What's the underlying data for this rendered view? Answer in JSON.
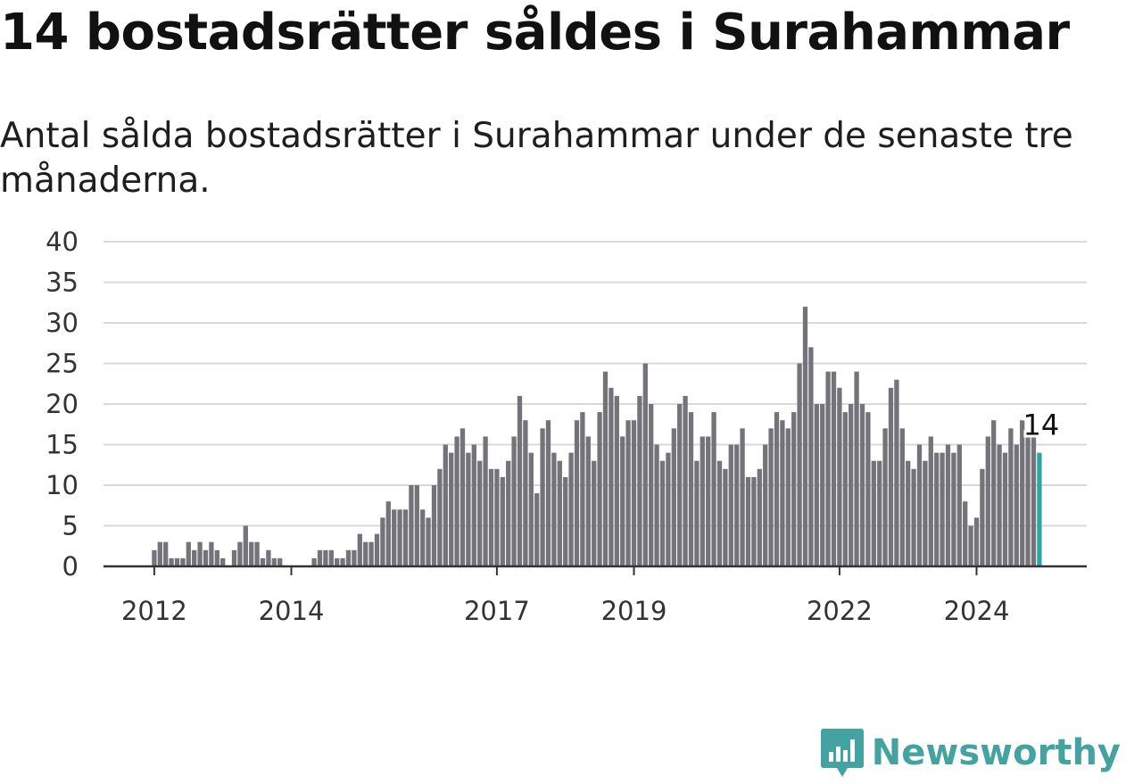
{
  "header": {
    "title": "14 bostadsrätter såldes i Surahammar",
    "subtitle": "Antal sålda bostadsrätter i Surahammar under de senaste tre månaderna."
  },
  "branding": {
    "logo_text": "Newsworthy",
    "logo_icon": "bar-chart-icon",
    "color": "#44a3a1"
  },
  "chart_data": {
    "type": "bar",
    "ylim": [
      0,
      40
    ],
    "yticks": [
      0,
      5,
      10,
      15,
      20,
      25,
      30,
      35,
      40
    ],
    "xticks": [
      {
        "label": "2012",
        "date": "2012-01"
      },
      {
        "label": "2014",
        "date": "2014-01"
      },
      {
        "label": "2017",
        "date": "2017-01"
      },
      {
        "label": "2019",
        "date": "2019-01"
      },
      {
        "label": "2022",
        "date": "2022-01"
      },
      {
        "label": "2024",
        "date": "2024-01"
      }
    ],
    "grid": true,
    "bar_color": "#74737a",
    "highlight_color": "#2aa7a3",
    "highlight_label": "14",
    "first_month": "2011-12",
    "values": [
      0,
      2,
      3,
      3,
      1,
      1,
      1,
      3,
      2,
      3,
      2,
      3,
      2,
      1,
      0,
      2,
      3,
      5,
      3,
      3,
      1,
      2,
      1,
      1,
      0,
      0,
      0,
      0,
      0,
      1,
      2,
      2,
      2,
      1,
      1,
      2,
      2,
      4,
      3,
      3,
      4,
      6,
      8,
      7,
      7,
      7,
      10,
      10,
      7,
      6,
      10,
      12,
      15,
      14,
      16,
      17,
      14,
      15,
      13,
      16,
      12,
      12,
      11,
      13,
      16,
      21,
      18,
      14,
      9,
      17,
      18,
      14,
      13,
      11,
      14,
      18,
      19,
      16,
      13,
      19,
      24,
      22,
      21,
      16,
      18,
      18,
      21,
      25,
      20,
      15,
      13,
      14,
      17,
      20,
      21,
      19,
      13,
      16,
      16,
      19,
      13,
      12,
      15,
      15,
      17,
      11,
      11,
      12,
      15,
      17,
      19,
      18,
      17,
      19,
      25,
      32,
      27,
      20,
      20,
      24,
      24,
      22,
      19,
      20,
      24,
      20,
      19,
      13,
      13,
      17,
      22,
      23,
      17,
      13,
      12,
      15,
      13,
      16,
      14,
      14,
      15,
      14,
      15,
      8,
      5,
      6,
      12,
      16,
      18,
      15,
      14,
      17,
      15,
      18,
      16,
      16,
      14
    ]
  }
}
